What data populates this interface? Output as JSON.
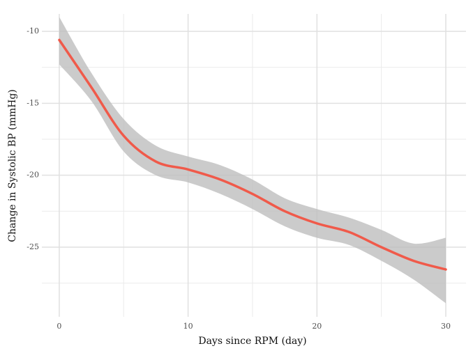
{
  "chart_data": {
    "type": "line",
    "x_label": "Days since RPM (day)",
    "y_label": "Change in Systolic BP (mmHg)",
    "x": [
      0,
      2.5,
      5,
      7.5,
      10,
      12.5,
      15,
      17.5,
      20,
      22.5,
      25,
      27.5,
      30
    ],
    "series": [
      {
        "color": "#f05a4a",
        "band_color": "#bebebe",
        "values": [
          -10.6,
          -13.9,
          -17.26,
          -19.05,
          -19.6,
          -20.3,
          -21.3,
          -22.5,
          -23.35,
          -23.95,
          -25.0,
          -25.95,
          -26.55
        ],
        "upper": [
          -9.0,
          -12.9,
          -16.1,
          -17.95,
          -18.7,
          -19.3,
          -20.3,
          -21.6,
          -22.35,
          -22.95,
          -23.8,
          -24.75,
          -24.35
        ],
        "lower": [
          -12.3,
          -14.85,
          -18.35,
          -20.0,
          -20.5,
          -21.3,
          -22.35,
          -23.55,
          -24.35,
          -24.85,
          -25.95,
          -27.25,
          -28.9
        ]
      }
    ],
    "xlim": [
      -1.35,
      31.57
    ],
    "ylim": [
      -29.84,
      -8.79
    ],
    "xticks": [
      0,
      10,
      20,
      30
    ],
    "yticks": [
      -25,
      -20,
      -15,
      -10
    ],
    "x_minor_ticks": [
      5,
      15,
      25
    ],
    "y_minor_ticks": [
      -27.5,
      -22.5,
      -17.5,
      -12.5
    ],
    "grid": true
  }
}
